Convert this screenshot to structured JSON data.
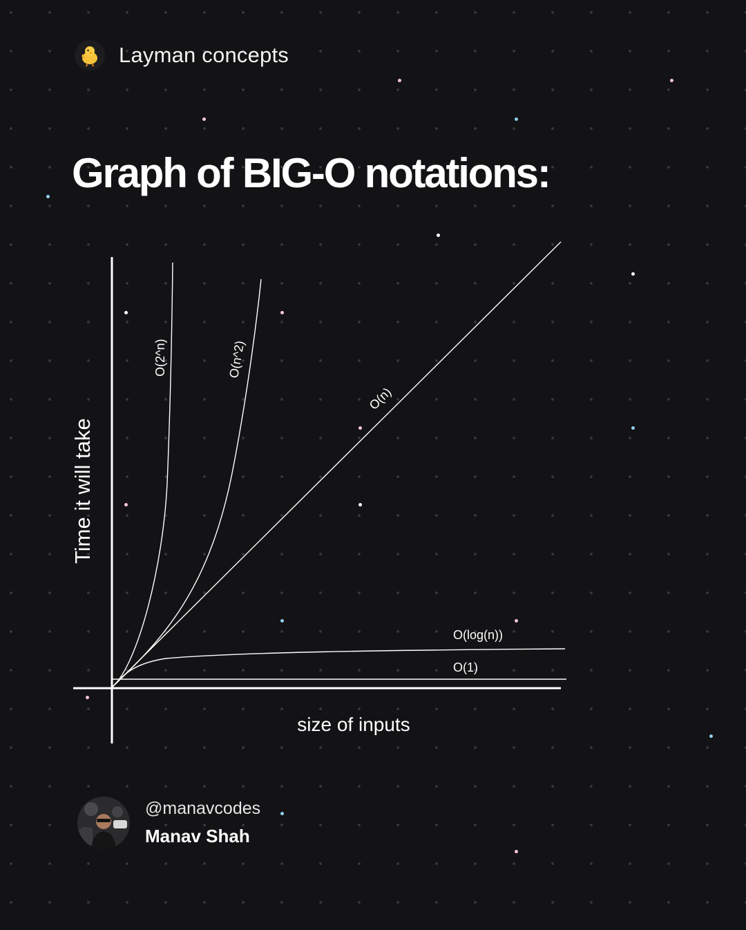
{
  "header": {
    "brand_label": "Layman concepts",
    "brand_icon": "chick-icon"
  },
  "title": "Graph of BIG-O notations:",
  "diagram": {
    "y_axis_label": "Time it will take",
    "x_axis_label": "size of inputs",
    "curves": [
      {
        "label": "O(2^n)"
      },
      {
        "label": "O(n^2)"
      },
      {
        "label": "O(n)"
      },
      {
        "label": "O(log(n))"
      },
      {
        "label": "O(1)"
      }
    ]
  },
  "author": {
    "handle": "@manavcodes",
    "name": "Manav Shah",
    "avatar_icon": "avatar-photo"
  },
  "colors": {
    "background": "#131214",
    "grid_dot": "#3a393d",
    "line": "#ffffff",
    "sparkle_pink": "#f3c6dc",
    "sparkle_blue": "#8fd0ee",
    "sparkle_white": "#ffffff"
  }
}
